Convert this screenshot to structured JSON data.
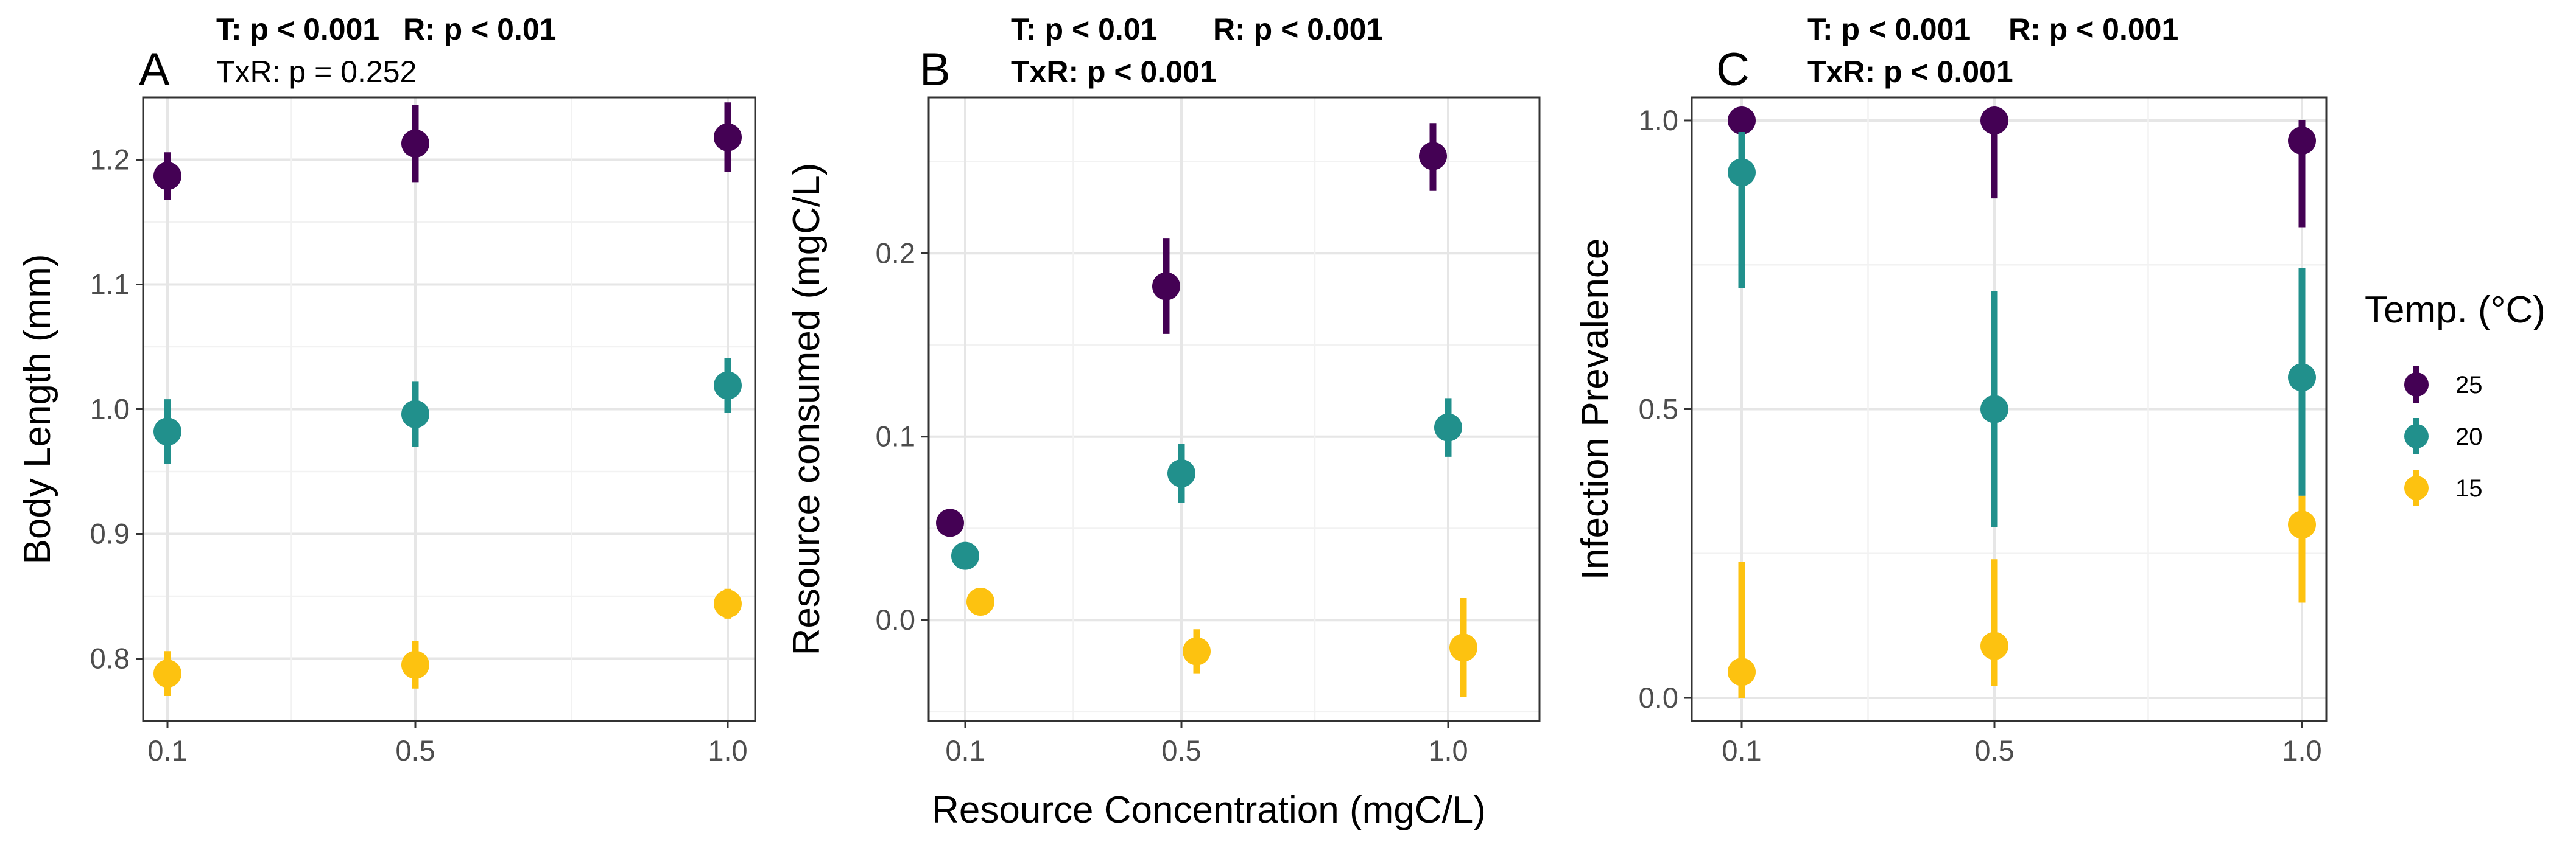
{
  "x_axis_title": "Resource Concentration (mgC/L)",
  "legend": {
    "title": "Temp. (°C)",
    "entries": [
      {
        "label": "25",
        "color": "#440154"
      },
      {
        "label": "20",
        "color": "#21908C"
      },
      {
        "label": "15",
        "color": "#FDC210"
      }
    ]
  },
  "chart_data": [
    {
      "type": "scatter",
      "panel": "A",
      "stats_line1_a": "T: p < 0.001",
      "stats_line1_b": "R: p < 0.01",
      "stats_line2": "TxR: p = 0.252",
      "stats_line2_bold": false,
      "ylabel": "Body Length (mm)",
      "x_ticks": [
        "0.1",
        "0.5",
        "1.0"
      ],
      "y_ticks": [
        "0.8",
        "0.9",
        "1.0",
        "1.1",
        "1.2"
      ],
      "ylim": [
        0.75,
        1.25
      ],
      "series": [
        {
          "name": "25",
          "color": "#440154",
          "x": [
            0.1,
            0.5,
            1.0
          ],
          "y": [
            1.187,
            1.213,
            1.218
          ],
          "lower": [
            1.168,
            1.182,
            1.19
          ],
          "upper": [
            1.206,
            1.244,
            1.246
          ]
        },
        {
          "name": "20",
          "color": "#21908C",
          "x": [
            0.1,
            0.5,
            1.0
          ],
          "y": [
            0.982,
            0.996,
            1.019
          ],
          "lower": [
            0.956,
            0.97,
            0.997
          ],
          "upper": [
            1.008,
            1.022,
            1.041
          ]
        },
        {
          "name": "15",
          "color": "#FDC210",
          "x": [
            0.1,
            0.5,
            1.0
          ],
          "y": [
            0.788,
            0.795,
            0.844
          ],
          "lower": [
            0.77,
            0.776,
            0.832
          ],
          "upper": [
            0.806,
            0.814,
            0.856
          ]
        }
      ]
    },
    {
      "type": "scatter",
      "panel": "B",
      "stats_line1_a": "T: p < 0.01",
      "stats_line1_b": "R: p < 0.001",
      "stats_line2": "TxR: p < 0.001",
      "stats_line2_bold": true,
      "ylabel": "Resource consumed (mgC/L)",
      "x_ticks": [
        "0.1",
        "0.5",
        "1.0"
      ],
      "y_ticks": [
        "0.0",
        "0.1",
        "0.2"
      ],
      "ylim": [
        -0.055,
        0.285
      ],
      "series": [
        {
          "name": "25",
          "color": "#440154",
          "x": [
            0.1,
            0.5,
            1.0
          ],
          "y": [
            0.053,
            0.182,
            0.253
          ],
          "lower": [
            null,
            0.156,
            0.234
          ],
          "upper": [
            null,
            0.208,
            0.271
          ]
        },
        {
          "name": "20",
          "color": "#21908C",
          "x": [
            0.1,
            0.5,
            1.0
          ],
          "y": [
            0.035,
            0.08,
            0.105
          ],
          "lower": [
            null,
            0.064,
            0.089
          ],
          "upper": [
            null,
            0.096,
            0.121
          ]
        },
        {
          "name": "15",
          "color": "#FDC210",
          "x": [
            0.1,
            0.5,
            1.0
          ],
          "y": [
            0.01,
            -0.017,
            -0.015
          ],
          "lower": [
            null,
            -0.029,
            -0.042
          ],
          "upper": [
            null,
            -0.005,
            0.012
          ]
        }
      ]
    },
    {
      "type": "scatter",
      "panel": "C",
      "stats_line1_a": "T: p < 0.001",
      "stats_line1_b": "R: p < 0.001",
      "stats_line2": "TxR: p < 0.001",
      "stats_line2_bold": true,
      "ylabel": "Infection Prevalence",
      "x_ticks": [
        "0.1",
        "0.5",
        "1.0"
      ],
      "y_ticks": [
        "0.0",
        "0.5",
        "1.0"
      ],
      "ylim": [
        -0.04,
        1.04
      ],
      "series": [
        {
          "name": "25",
          "color": "#440154",
          "x": [
            0.1,
            0.5,
            1.0
          ],
          "y": [
            1.0,
            1.0,
            0.965
          ],
          "lower": [
            0.8,
            0.865,
            0.815
          ],
          "upper": [
            1.0,
            1.0,
            1.0
          ]
        },
        {
          "name": "20",
          "color": "#21908C",
          "x": [
            0.1,
            0.5,
            1.0
          ],
          "y": [
            0.91,
            0.5,
            0.555
          ],
          "lower": [
            0.71,
            0.295,
            0.35
          ],
          "upper": [
            0.98,
            0.705,
            0.745
          ]
        },
        {
          "name": "15",
          "color": "#FDC210",
          "x": [
            0.1,
            0.5,
            1.0
          ],
          "y": [
            0.045,
            0.09,
            0.3
          ],
          "lower": [
            0.0,
            0.02,
            0.165
          ],
          "upper": [
            0.235,
            0.24,
            0.35
          ]
        }
      ]
    }
  ]
}
